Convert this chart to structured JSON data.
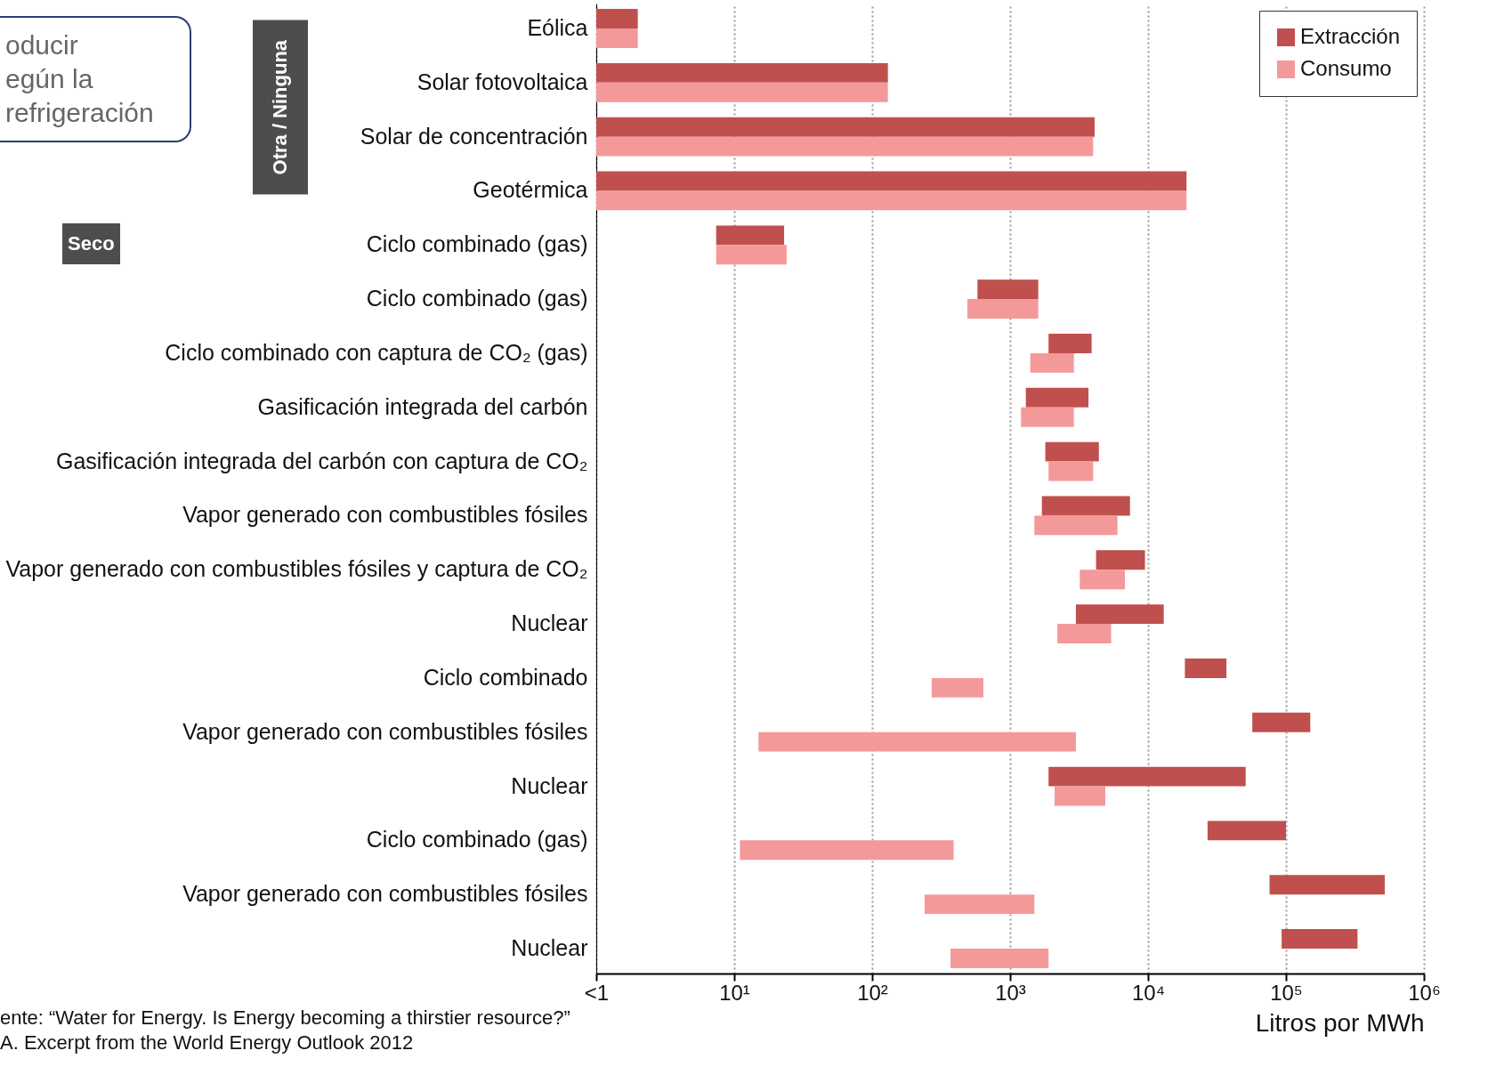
{
  "chart_data": {
    "type": "bar",
    "orientation": "horizontal",
    "log": "x",
    "xlabel": "Litros por MWh",
    "categories": [
      "Eólica",
      "Solar fotovoltaica",
      "Solar de concentración",
      "Geotérmica",
      "Ciclo combinado (gas)",
      "Ciclo combinado (gas)",
      "Ciclo combinado con captura de CO₂ (gas)",
      "Gasificación integrada del carbón",
      "Gasificación integrada del carbón con captura de CO₂",
      "Vapor generado con combustibles fósiles",
      "Vapor generado con combustibles fósiles y captura de CO₂",
      "Nuclear",
      "Ciclo combinado",
      "Vapor generado con combustibles fósiles",
      "Nuclear",
      "Ciclo combinado (gas)",
      "Vapor generado con combustibles fósiles",
      "Nuclear"
    ],
    "series": [
      {
        "name": "Extracción",
        "color": "#c0504d",
        "base": [
          1,
          1,
          1,
          1,
          7.4,
          580,
          1900,
          1300,
          1800,
          1700,
          4200,
          3000,
          18500,
          57000,
          1900,
          27000,
          76000,
          93000
        ],
        "values": [
          1,
          129,
          4099,
          18999,
          15.6,
          1020,
          2000,
          2400,
          2600,
          5700,
          5300,
          10000,
          18500,
          93000,
          49100,
          73000,
          444000,
          237000
        ]
      },
      {
        "name": "Consumo",
        "color": "#f4999a",
        "base": [
          1,
          1,
          1,
          1,
          7.4,
          490,
          1400,
          1200,
          1900,
          1500,
          3200,
          2200,
          270,
          15,
          2100,
          11,
          240,
          370
        ],
        "values": [
          1,
          129,
          3999,
          18999,
          16.6,
          1110,
          1500,
          1700,
          2100,
          4500,
          3600,
          3200,
          370,
          2985,
          2800,
          379,
          1260,
          1530
        ]
      }
    ],
    "xlim": [
      1,
      1000000
    ],
    "xticks": [
      {
        "value": 1,
        "label": "<1"
      },
      {
        "value": 10,
        "label": "10¹"
      },
      {
        "value": 100,
        "label": "10²"
      },
      {
        "value": 1000,
        "label": "10³"
      },
      {
        "value": 10000,
        "label": "10⁴"
      },
      {
        "value": 100000,
        "label": "10⁵"
      },
      {
        "value": 1000000,
        "label": "10⁶"
      }
    ],
    "grid": "x",
    "legend": "top right",
    "annotations": [
      "oducir\negún la\nrefrigeración",
      "Otra / Ninguna",
      "Seco",
      "ente: “Water for Energy. Is Energy becoming a thirstier resource?”\nA. Excerpt from the World Energy Outlook 2012"
    ]
  }
}
